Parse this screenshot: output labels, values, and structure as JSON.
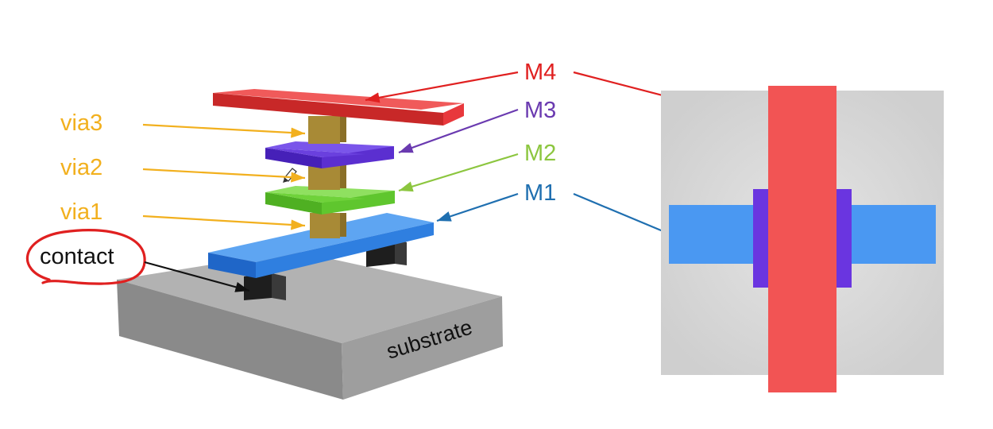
{
  "labels": {
    "via3": "via3",
    "via2": "via2",
    "via1": "via1",
    "contact": "contact",
    "m4": "M4",
    "m3": "M3",
    "m2": "M2",
    "m1": "M1",
    "substrate": "substrate"
  },
  "colors": {
    "m4": "#e8383c",
    "m3": "#5b2fd0",
    "m2": "#5fc62e",
    "m1": "#2f7fe0",
    "via": "#a88a36",
    "contact": "#2a2a2a",
    "substrate": "#9a9a9a",
    "via_label": "#f2b01e",
    "m4_label": "#e02020",
    "m3_label": "#6a3ab0",
    "m2_label": "#8cc63f",
    "m1_label": "#1f6fb0",
    "annotation_circle": "#e02020"
  }
}
